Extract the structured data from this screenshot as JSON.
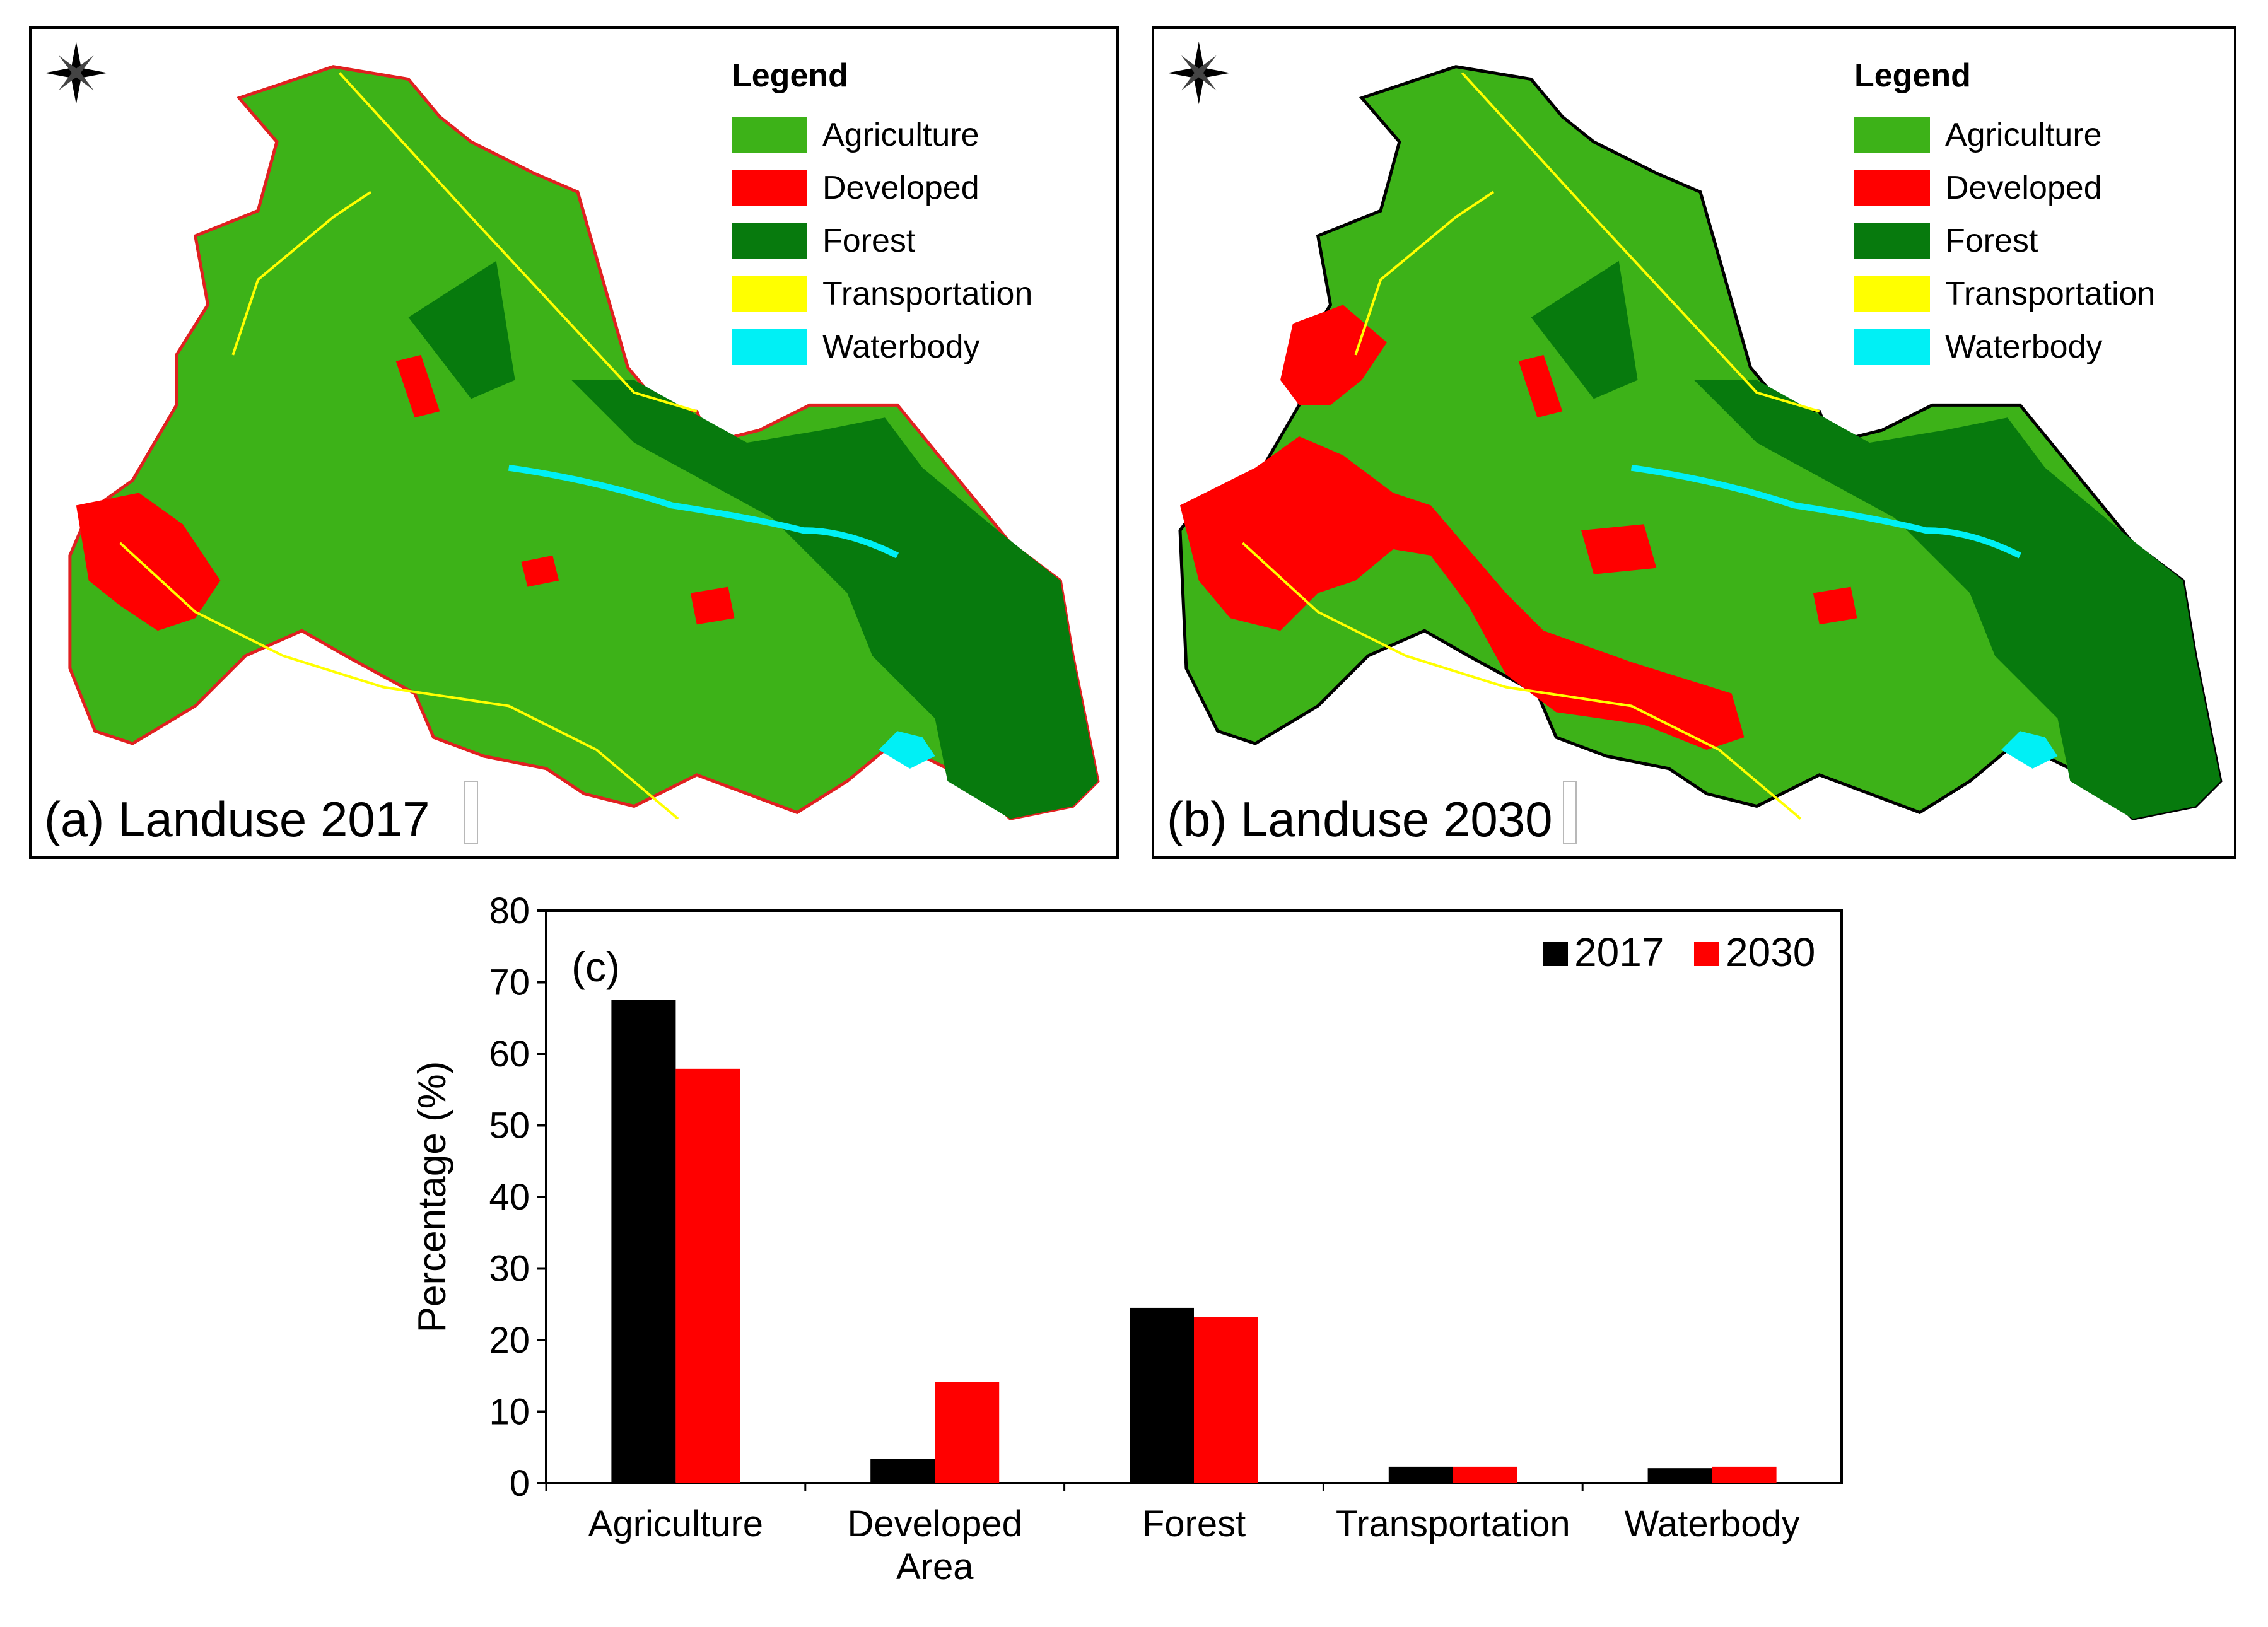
{
  "map_panels": [
    {
      "caption": "(a) Landuse 2017",
      "boundary_color": "#e02020",
      "legend_title": "Legend",
      "legend": [
        {
          "label": "Agriculture",
          "color": "#3db218"
        },
        {
          "label": "Developed",
          "color": "#ff0000"
        },
        {
          "label": "Forest",
          "color": "#077a0d"
        },
        {
          "label": "Transportation",
          "color": "#ffff00"
        },
        {
          "label": "Waterbody",
          "color": "#00f0f5"
        }
      ],
      "icon": "compass-rose-icon"
    },
    {
      "caption": "(b) Landuse 2030",
      "boundary_color": "#000000",
      "legend_title": "Legend",
      "legend": [
        {
          "label": "Agriculture",
          "color": "#3db218"
        },
        {
          "label": "Developed",
          "color": "#ff0000"
        },
        {
          "label": "Forest",
          "color": "#077a0d"
        },
        {
          "label": "Transportation",
          "color": "#ffff00"
        },
        {
          "label": "Waterbody",
          "color": "#00f0f5"
        }
      ],
      "icon": "compass-rose-icon"
    }
  ],
  "chart_data": {
    "type": "bar",
    "panel_label": "(c)",
    "categories": [
      [
        "Agriculture"
      ],
      [
        "Developed",
        "Area"
      ],
      [
        "Forest"
      ],
      [
        "Transportation"
      ],
      [
        "Waterbody"
      ]
    ],
    "series": [
      {
        "name": "2017",
        "color": "#000000",
        "values": [
          67.5,
          3.4,
          24.5,
          2.3,
          2.1
        ]
      },
      {
        "name": "2030",
        "color": "#ff0000",
        "values": [
          57.9,
          14.1,
          23.2,
          2.3,
          2.3
        ]
      }
    ],
    "ylabel": "Percentage (%)",
    "ylim": [
      0,
      80
    ],
    "yticks": [
      "0",
      "10",
      "20",
      "30",
      "40",
      "50",
      "60",
      "70",
      "80"
    ],
    "legend_position": "top-right",
    "grid": false
  }
}
